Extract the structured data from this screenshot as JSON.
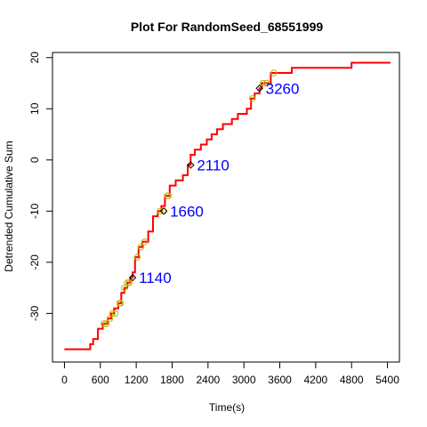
{
  "chart_data": {
    "type": "line",
    "title": "Plot For RandomSeed_68551999",
    "xlabel": "Time(s)",
    "ylabel": "Detrended Cumulative Sum",
    "xlim": [
      -200,
      5600
    ],
    "ylim": [
      -39.5,
      21
    ],
    "xticks": [
      0,
      600,
      1200,
      1800,
      2400,
      3000,
      3600,
      4200,
      4800,
      5400
    ],
    "yticks": [
      -30,
      -20,
      -10,
      0,
      10,
      20
    ],
    "grid": false,
    "legend": "none",
    "colors": {
      "line": "#ff0000",
      "circle_markers": "#b8b800",
      "diamond_markers": "#000000",
      "annotations": "#0000ff"
    },
    "series": [
      {
        "style": "step",
        "points": [
          [
            0,
            -37
          ],
          [
            430,
            -37
          ],
          [
            430,
            -36
          ],
          [
            480,
            -36
          ],
          [
            480,
            -35
          ],
          [
            560,
            -35
          ],
          [
            560,
            -33
          ],
          [
            640,
            -33
          ],
          [
            640,
            -32
          ],
          [
            720,
            -32
          ],
          [
            720,
            -31
          ],
          [
            780,
            -31
          ],
          [
            780,
            -30
          ],
          [
            830,
            -30
          ],
          [
            830,
            -29
          ],
          [
            900,
            -29
          ],
          [
            900,
            -28
          ],
          [
            950,
            -28
          ],
          [
            950,
            -26
          ],
          [
            1000,
            -26
          ],
          [
            1000,
            -25
          ],
          [
            1050,
            -25
          ],
          [
            1050,
            -24
          ],
          [
            1100,
            -24
          ],
          [
            1100,
            -23
          ],
          [
            1140,
            -23
          ],
          [
            1140,
            -22
          ],
          [
            1180,
            -22
          ],
          [
            1180,
            -19
          ],
          [
            1240,
            -19
          ],
          [
            1240,
            -17
          ],
          [
            1300,
            -17
          ],
          [
            1300,
            -16
          ],
          [
            1400,
            -16
          ],
          [
            1400,
            -14
          ],
          [
            1480,
            -14
          ],
          [
            1480,
            -11
          ],
          [
            1560,
            -11
          ],
          [
            1560,
            -10
          ],
          [
            1620,
            -10
          ],
          [
            1620,
            -9
          ],
          [
            1680,
            -9
          ],
          [
            1680,
            -7
          ],
          [
            1760,
            -7
          ],
          [
            1760,
            -5
          ],
          [
            1860,
            -5
          ],
          [
            1860,
            -4
          ],
          [
            1980,
            -4
          ],
          [
            1980,
            -3
          ],
          [
            2060,
            -3
          ],
          [
            2060,
            -1
          ],
          [
            2110,
            -1
          ],
          [
            2110,
            1
          ],
          [
            2180,
            1
          ],
          [
            2180,
            2
          ],
          [
            2280,
            2
          ],
          [
            2280,
            3
          ],
          [
            2380,
            3
          ],
          [
            2380,
            4
          ],
          [
            2460,
            4
          ],
          [
            2460,
            5
          ],
          [
            2550,
            5
          ],
          [
            2550,
            6
          ],
          [
            2650,
            6
          ],
          [
            2650,
            7
          ],
          [
            2800,
            7
          ],
          [
            2800,
            8
          ],
          [
            2900,
            8
          ],
          [
            2900,
            9
          ],
          [
            3050,
            9
          ],
          [
            3050,
            10
          ],
          [
            3120,
            10
          ],
          [
            3120,
            12
          ],
          [
            3180,
            12
          ],
          [
            3180,
            13
          ],
          [
            3260,
            13
          ],
          [
            3260,
            14
          ],
          [
            3300,
            14
          ],
          [
            3300,
            15
          ],
          [
            3450,
            15
          ],
          [
            3450,
            17
          ],
          [
            3800,
            17
          ],
          [
            3800,
            18
          ],
          [
            4800,
            18
          ],
          [
            4800,
            19
          ],
          [
            5450,
            19
          ]
        ]
      }
    ],
    "circle_markers": [
      [
        660,
        -32
      ],
      [
        700,
        -32
      ],
      [
        760,
        -31
      ],
      [
        800,
        -30
      ],
      [
        850,
        -30
      ],
      [
        920,
        -28
      ],
      [
        940,
        -28
      ],
      [
        1000,
        -25
      ],
      [
        1050,
        -24
      ],
      [
        1080,
        -24
      ],
      [
        1220,
        -19
      ],
      [
        1280,
        -17
      ],
      [
        1340,
        -16
      ],
      [
        1600,
        -10
      ],
      [
        1660,
        -10
      ],
      [
        1720,
        -7
      ],
      [
        1740,
        -7
      ],
      [
        3140,
        12
      ],
      [
        3320,
        15
      ],
      [
        3380,
        15
      ],
      [
        3500,
        17
      ]
    ],
    "diamond_markers": [
      [
        1140,
        -23
      ],
      [
        1660,
        -10
      ],
      [
        2110,
        -1
      ],
      [
        3260,
        14
      ]
    ],
    "annotations": [
      {
        "text": "1140",
        "x": 1140,
        "y": -23
      },
      {
        "text": "1660",
        "x": 1660,
        "y": -10
      },
      {
        "text": "2110",
        "x": 2110,
        "y": -1
      },
      {
        "text": "3260",
        "x": 3260,
        "y": 14
      }
    ]
  }
}
